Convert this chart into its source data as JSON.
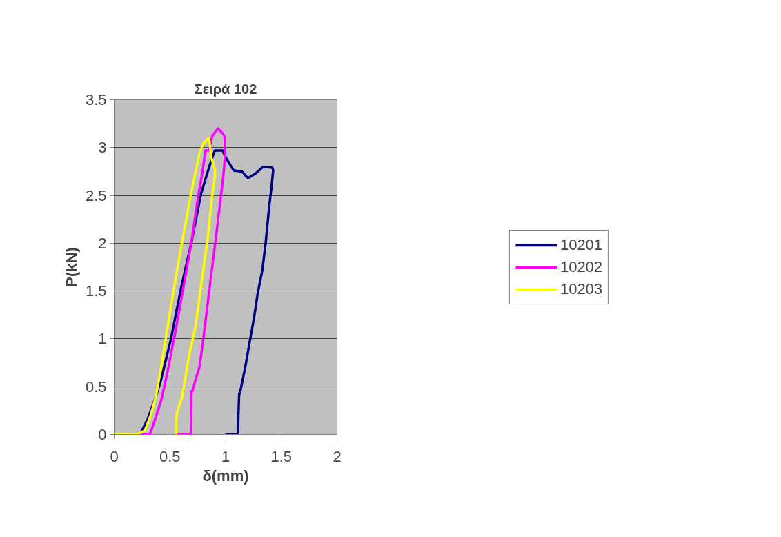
{
  "chart_data": {
    "type": "line",
    "title": "Σειρά 102",
    "xlabel": "δ(mm)",
    "ylabel": "P(kN)",
    "xlim": [
      0,
      2
    ],
    "xticks": [
      0,
      0.5,
      1,
      1.5,
      2
    ],
    "ylim": [
      0,
      3.5
    ],
    "yticks": [
      0,
      0.5,
      1,
      1.5,
      2,
      2.5,
      3,
      3.5
    ],
    "grid": "y",
    "legend": "right",
    "line_style": "solid",
    "marker": "none",
    "series": [
      {
        "name": "10201",
        "color": "#000080",
        "x": [
          0.136,
          0.2,
          0.24,
          0.3,
          0.367,
          0.42,
          0.51,
          0.6,
          0.69,
          0.78,
          0.856,
          0.89,
          0.905,
          0.973,
          1.0,
          1.073,
          1.147,
          1.2,
          1.27,
          1.337,
          1.42,
          1.427,
          1.41,
          1.39,
          1.36,
          1.33,
          1.29,
          1.255,
          1.218,
          1.174,
          1.128,
          1.122,
          1.109,
          0.997
        ],
        "values": [
          0,
          0,
          0.02,
          0.16,
          0.37,
          0.57,
          1.0,
          1.53,
          1.99,
          2.52,
          2.81,
          2.93,
          2.97,
          2.97,
          2.9,
          2.76,
          2.75,
          2.68,
          2.73,
          2.8,
          2.79,
          2.76,
          2.57,
          2.37,
          2.01,
          1.72,
          1.49,
          1.22,
          0.98,
          0.69,
          0.43,
          0.43,
          0,
          0
        ]
      },
      {
        "name": "10202",
        "color": "#ff00ff",
        "x": [
          0.177,
          0.32,
          0.367,
          0.42,
          0.476,
          0.55,
          0.62,
          0.69,
          0.755,
          0.79,
          0.82,
          0.85,
          0.88,
          0.93,
          0.973,
          0.99,
          0.997,
          0.98,
          0.945,
          0.91,
          0.856,
          0.8,
          0.766,
          0.7,
          0.692,
          0.688,
          0.557
        ],
        "values": [
          0,
          0,
          0.16,
          0.35,
          0.64,
          1.08,
          1.53,
          1.99,
          2.5,
          2.73,
          2.97,
          2.97,
          3.12,
          3.2,
          3.15,
          3.12,
          2.93,
          2.71,
          2.37,
          2.03,
          1.53,
          1.0,
          0.71,
          0.45,
          0.45,
          0,
          0
        ]
      },
      {
        "name": "10203",
        "color": "#ffff00",
        "x": [
          0,
          0.195,
          0.277,
          0.33,
          0.375,
          0.43,
          0.495,
          0.557,
          0.62,
          0.69,
          0.766,
          0.8,
          0.848,
          0.856,
          0.87,
          0.905,
          0.9,
          0.88,
          0.837,
          0.78,
          0.73,
          0.675,
          0.61,
          0.56,
          0.557,
          0.557
        ],
        "values": [
          0,
          0,
          0.04,
          0.21,
          0.4,
          0.76,
          1.24,
          1.67,
          2.08,
          2.52,
          2.94,
          3.04,
          3.1,
          3.05,
          2.9,
          2.77,
          2.66,
          2.5,
          2.03,
          1.56,
          1.13,
          0.84,
          0.4,
          0.21,
          0.1,
          0
        ]
      }
    ]
  }
}
